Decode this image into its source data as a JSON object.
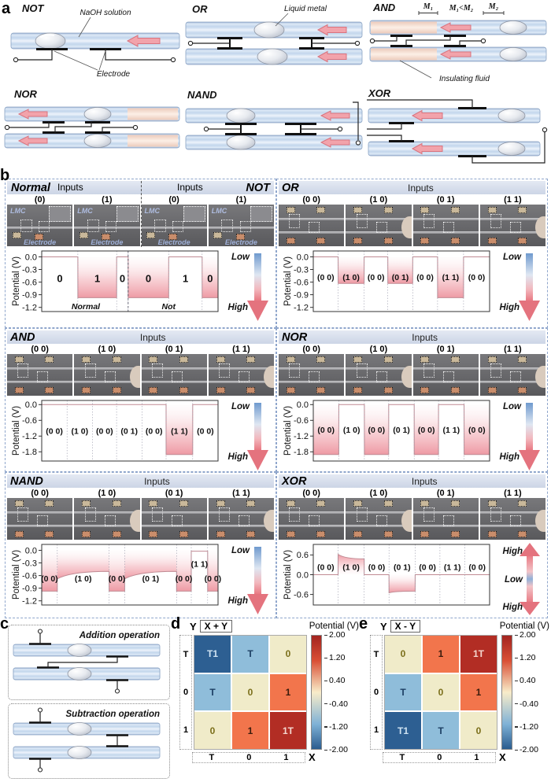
{
  "labels": {
    "a": "a",
    "b": "b",
    "c": "c",
    "d": "d",
    "e": "e"
  },
  "gates": {
    "not": {
      "title": "NOT",
      "solution": "NaOH solution",
      "electrode": "Electrode"
    },
    "or": {
      "title": "OR",
      "liquid_metal": "Liquid metal"
    },
    "and": {
      "title": "AND",
      "m1": "M₁",
      "rel": "M₁<M₂",
      "m2": "M₂",
      "insulating": "Insulating fluid"
    },
    "nor": {
      "title": "NOR"
    },
    "nand": {
      "title": "NAND"
    },
    "xor": {
      "title": "XOR"
    }
  },
  "panel_b": {
    "normal_not": {
      "title_left": "Normal",
      "inputs_left": "Inputs",
      "inputs_right": "Inputs",
      "title_right": "NOT",
      "photo_type": "single",
      "photo_labels": [
        "(0)",
        "(1)",
        "(0)",
        "(1)"
      ],
      "photo_texts": {
        "lmc": "LMC",
        "electrode": "Electrode"
      }
    },
    "or_gate": {
      "title": "OR",
      "inputs": "Inputs",
      "photo_type": "double",
      "photo_labels": [
        "(0 0)",
        "(1 0)",
        "(0 1)",
        "(1 1)"
      ]
    },
    "and_gate": {
      "title": "AND",
      "inputs": "Inputs",
      "photo_type": "double",
      "photo_labels": [
        "(0 0)",
        "(1 0)",
        "(0 1)",
        "(1 1)"
      ]
    },
    "nor_gate": {
      "title": "NOR",
      "inputs": "Inputs",
      "photo_type": "double",
      "photo_labels": [
        "(0 0)",
        "(1 0)",
        "(0 1)",
        "(1 1)"
      ]
    },
    "nand_gate": {
      "title": "NAND",
      "inputs": "Inputs",
      "photo_type": "double",
      "photo_labels": [
        "(0 0)",
        "(1 0)",
        "(0 1)",
        "(1 1)"
      ]
    },
    "xor_gate": {
      "title": "XOR",
      "inputs": "Inputs",
      "photo_type": "double",
      "photo_labels": [
        "(0 0)",
        "(1 0)",
        "(0 1)",
        "(1 1)"
      ]
    }
  },
  "panel_c": {
    "addition_title": "Addition operation",
    "subtraction_title": "Subtraction operation"
  },
  "heat_colors": {
    "-2": "#2d5f92",
    "-1": "#8fbdda",
    "0": "#f0ebc9",
    "1": "#f2754c",
    "2": "#b22d24"
  },
  "heat_text": {
    "-2": "#cfe3f2",
    "-1": "#1d3f63",
    "0": "#7a6e1a",
    "1": "#3a1c0d",
    "2": "#f4d7cf"
  },
  "cb_stops": [
    "#a32420",
    "#d94f35 22%",
    "#f8ecc9 50%",
    "#7fb2d6 78%",
    "#2a5c8f"
  ],
  "chart_data": [
    {
      "id": "normal_not",
      "type": "line",
      "ylabel": "Potential (V)",
      "ylim": [
        -1.3,
        0.14
      ],
      "yticks": [
        0,
        -0.3,
        -0.6,
        -0.9,
        -1.2
      ],
      "label_y": -0.52,
      "big": true,
      "mid_divider": 3,
      "arrow": {
        "type": "lh",
        "labels": [
          "Low",
          "High"
        ]
      },
      "sublabels": [
        {
          "text": "Normal",
          "x": 0.25
        },
        {
          "text": "Not",
          "x": 0.72
        }
      ],
      "segments": [
        {
          "l": "0",
          "v": 0,
          "w": 2.05
        },
        {
          "l": "1",
          "v": -0.97,
          "w": 2.2,
          "sh": true
        },
        {
          "l": "0",
          "v": 0,
          "w": 0.65
        },
        {
          "l": "0",
          "v": -0.97,
          "w": 2.3,
          "sh": true
        },
        {
          "l": "1",
          "v": 0,
          "w": 1.9
        },
        {
          "l": "0",
          "v": -0.97,
          "w": 0.9,
          "sh": true
        }
      ]
    },
    {
      "id": "or_gate",
      "type": "line",
      "ylabel": "Potential (V)",
      "ylim": [
        -1.3,
        0.14
      ],
      "yticks": [
        0,
        -0.3,
        -0.6,
        -0.9,
        -1.2
      ],
      "label_y": -0.48,
      "arrow": {
        "type": "lh",
        "labels": [
          "Low",
          "High"
        ]
      },
      "segments": [
        {
          "l": "(0 0)",
          "v": 0,
          "w": 1.05
        },
        {
          "l": "(1 0)",
          "v": -0.63,
          "w": 1.1,
          "sh": true
        },
        {
          "l": "(0 0)",
          "v": 0,
          "w": 1.0
        },
        {
          "l": "(0 1)",
          "v": -0.63,
          "w": 1.05,
          "sh": true
        },
        {
          "l": "(0 0)",
          "v": 0,
          "w": 1.05
        },
        {
          "l": "(1 1)",
          "v": -0.97,
          "w": 1.1,
          "sh": true
        },
        {
          "l": "(0 0)",
          "v": 0,
          "w": 1.1
        }
      ]
    },
    {
      "id": "and_gate",
      "type": "line",
      "ylabel": "Potential (V)",
      "ylim": [
        -2.15,
        0.16
      ],
      "yticks": [
        0,
        -0.6,
        -1.2,
        -1.8
      ],
      "label_y": -1.0,
      "arrow": {
        "type": "lh",
        "labels": [
          "Low",
          "High"
        ]
      },
      "segments": [
        {
          "l": "(0 0)",
          "v": 0,
          "w": 1.05
        },
        {
          "l": "(1 0)",
          "v": 0,
          "w": 1.05
        },
        {
          "l": "(0 0)",
          "v": 0,
          "w": 1.0
        },
        {
          "l": "(0 1)",
          "v": 0,
          "w": 1.05
        },
        {
          "l": "(0 0)",
          "v": 0,
          "w": 1.0
        },
        {
          "l": "(1 1)",
          "v": -1.9,
          "w": 1.1,
          "sh": true
        },
        {
          "l": "(0 0)",
          "v": 0,
          "w": 1.05
        }
      ]
    },
    {
      "id": "nor_gate",
      "type": "line",
      "ylabel": "Potential (V)",
      "ylim": [
        -2.15,
        0.16
      ],
      "yticks": [
        0,
        -0.6,
        -1.2,
        -1.8
      ],
      "label_y": -0.95,
      "arrow": {
        "type": "lh",
        "labels": [
          "Low",
          "High"
        ]
      },
      "segments": [
        {
          "l": "(0 0)",
          "v": -1.9,
          "w": 1.05,
          "sh": true
        },
        {
          "l": "(1 0)",
          "v": 0,
          "w": 1.05
        },
        {
          "l": "(0 0)",
          "v": -1.9,
          "w": 1.0,
          "sh": true
        },
        {
          "l": "(0 1)",
          "v": 0,
          "w": 1.05
        },
        {
          "l": "(0 0)",
          "v": -1.9,
          "w": 1.0,
          "sh": true
        },
        {
          "l": "(1 1)",
          "v": 0,
          "w": 1.05
        },
        {
          "l": "(0 0)",
          "v": -1.9,
          "w": 1.05,
          "sh": true
        }
      ]
    },
    {
      "id": "nand_gate",
      "type": "line",
      "ylabel": "Potential (V)",
      "ylim": [
        -1.3,
        0.14
      ],
      "yticks": [
        0,
        -0.3,
        -0.6,
        -0.9,
        -1.2
      ],
      "label_y": -0.66,
      "arrow": {
        "type": "lh",
        "labels": [
          "Low",
          "High"
        ]
      },
      "segments": [
        {
          "l": "(0 0)",
          "v": -0.97,
          "w": 0.9,
          "sh": true
        },
        {
          "l": "(1 0)",
          "v": -0.68,
          "v2": -0.5,
          "w": 3.0,
          "sh": true
        },
        {
          "l": "(0 0)",
          "v": -0.97,
          "w": 0.9,
          "sh": true
        },
        {
          "l": "(0 1)",
          "v": -0.68,
          "v2": -0.5,
          "w": 3.0,
          "sh": true
        },
        {
          "l": "(0 0)",
          "v": -0.97,
          "w": 0.85,
          "sh": true
        },
        {
          "l": "(1 1)",
          "v": -0.02,
          "w": 0.95,
          "ly": -0.32
        },
        {
          "l": "(0 0)",
          "v": -0.97,
          "w": 0.6,
          "sh": true
        }
      ]
    },
    {
      "id": "xor_gate",
      "type": "line",
      "ylabel": "Potential (V)",
      "ylim": [
        -0.92,
        0.92
      ],
      "yticks": [
        0.6,
        0,
        -0.6
      ],
      "label_y": 0.24,
      "arrow": {
        "type": "hlh",
        "labels": [
          "High",
          "Low",
          "High"
        ]
      },
      "segments": [
        {
          "l": "(0 0)",
          "v": 0,
          "w": 1.0
        },
        {
          "l": "(1 0)",
          "v": 0.62,
          "v2": 0.48,
          "w": 1.05,
          "sh": true
        },
        {
          "l": "(0 0)",
          "v": 0,
          "w": 1.0
        },
        {
          "l": "(0 1)",
          "v": -0.55,
          "v2": -0.5,
          "w": 1.05,
          "sh": true
        },
        {
          "l": "(0 0)",
          "v": 0,
          "w": 1.0
        },
        {
          "l": "(1 1)",
          "v": 0,
          "w": 1.0
        },
        {
          "l": "(0 0)",
          "v": 0,
          "w": 1.0
        }
      ]
    },
    {
      "id": "sum_map",
      "type": "heatmap",
      "title": "X + Y",
      "axis_x": "X",
      "axis_y": "Y",
      "x_ticks": [
        "T",
        "0",
        "1"
      ],
      "y_ticks": [
        "T",
        "0",
        "1"
      ],
      "cells": [
        [
          "T1",
          "T",
          "0"
        ],
        [
          "T",
          "0",
          "1"
        ],
        [
          "0",
          "1",
          "1T"
        ]
      ],
      "values": [
        [
          -2,
          -1,
          0
        ],
        [
          -1,
          0,
          1
        ],
        [
          0,
          1,
          2
        ]
      ],
      "colorbar_title": "Potential (V)",
      "colorbar_ticks": [
        "2.00",
        "1.20",
        "0.40",
        "-0.40",
        "-1.20",
        "-2.00"
      ],
      "range": [
        -2,
        2
      ]
    },
    {
      "id": "diff_map",
      "type": "heatmap",
      "title": "X - Y",
      "axis_x": "X",
      "axis_y": "Y",
      "x_ticks": [
        "T",
        "0",
        "1"
      ],
      "y_ticks": [
        "T",
        "0",
        "1"
      ],
      "cells": [
        [
          "0",
          "1",
          "1T"
        ],
        [
          "T",
          "0",
          "1"
        ],
        [
          "T1",
          "T",
          "0"
        ]
      ],
      "values": [
        [
          0,
          1,
          2
        ],
        [
          -1,
          0,
          1
        ],
        [
          -2,
          -1,
          0
        ]
      ],
      "colorbar_title": "Potential (V)",
      "colorbar_ticks": [
        "2.00",
        "1.20",
        "0.40",
        "-0.40",
        "-1.20",
        "-2.00"
      ],
      "range": [
        -2,
        2
      ]
    }
  ]
}
